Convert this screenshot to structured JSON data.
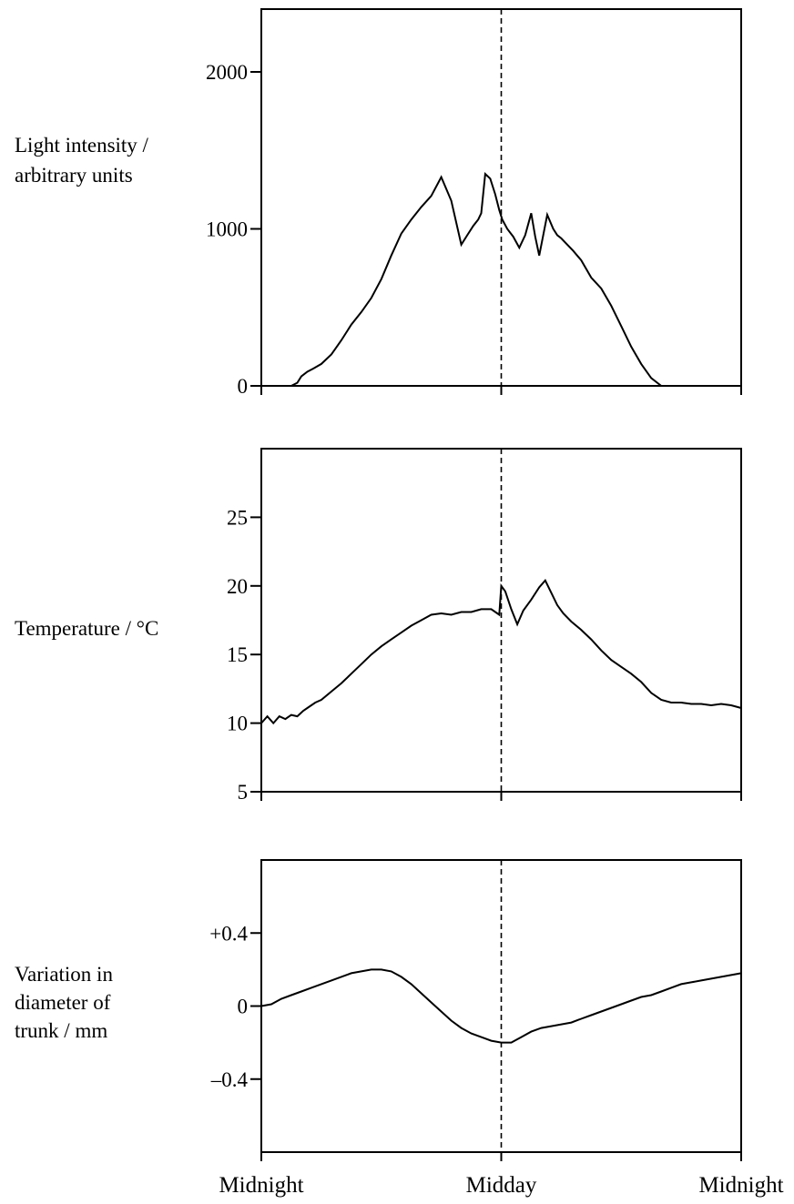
{
  "x_labels": [
    "Midnight",
    "Midday",
    "Midnight"
  ],
  "chart_data": [
    {
      "type": "line",
      "ylabel_lines": [
        "Light intensity /",
        "arbitrary units"
      ],
      "x_range_hours": [
        0,
        24
      ],
      "ylim": [
        0,
        2400
      ],
      "yticks": [
        0,
        1000,
        2000
      ],
      "ytick_labels": [
        "0",
        "1000",
        "2000"
      ],
      "midday_marker_hour": 12,
      "x": [
        1.5,
        1.8,
        2.0,
        2.3,
        2.6,
        3.0,
        3.5,
        4.0,
        4.5,
        5.0,
        5.5,
        6.0,
        6.5,
        7.0,
        7.5,
        8.0,
        8.5,
        9.0,
        9.5,
        10.0,
        10.3,
        10.6,
        10.85,
        11.0,
        11.2,
        11.45,
        11.7,
        11.9,
        12.05,
        12.3,
        12.6,
        12.9,
        13.2,
        13.5,
        13.7,
        13.9,
        14.1,
        14.3,
        14.6,
        14.8,
        15.0,
        15.3,
        15.6,
        16.0,
        16.5,
        17.0,
        17.5,
        18.0,
        18.5,
        19.0,
        19.5,
        20.0,
        20.5,
        21.0,
        21.3,
        21.5
      ],
      "values": [
        0,
        20,
        60,
        90,
        110,
        140,
        200,
        290,
        390,
        470,
        560,
        680,
        830,
        970,
        1060,
        1140,
        1210,
        1330,
        1180,
        900,
        960,
        1020,
        1060,
        1100,
        1350,
        1320,
        1220,
        1120,
        1060,
        1000,
        950,
        880,
        960,
        1100,
        950,
        830,
        960,
        1090,
        1000,
        960,
        940,
        900,
        860,
        800,
        690,
        620,
        510,
        380,
        250,
        140,
        50,
        0,
        null,
        null,
        null,
        null
      ]
    },
    {
      "type": "line",
      "ylabel": "Temperature / °C",
      "x_range_hours": [
        0,
        24
      ],
      "ylim": [
        5,
        30
      ],
      "yticks": [
        5,
        10,
        15,
        20,
        25
      ],
      "ytick_labels": [
        "5",
        "10",
        "15",
        "20",
        "25"
      ],
      "midday_marker_hour": 12,
      "x": [
        0,
        0.3,
        0.6,
        0.9,
        1.2,
        1.5,
        1.8,
        2.1,
        2.4,
        2.7,
        3.0,
        3.5,
        4.0,
        4.5,
        5.0,
        5.5,
        6.0,
        6.5,
        7.0,
        7.5,
        8.0,
        8.5,
        9.0,
        9.5,
        10.0,
        10.5,
        11.0,
        11.5,
        11.9,
        12.0,
        12.2,
        12.5,
        12.8,
        13.1,
        13.5,
        13.9,
        14.2,
        14.5,
        14.8,
        15.1,
        15.5,
        16.0,
        16.5,
        17.0,
        17.5,
        18.0,
        18.5,
        19.0,
        19.5,
        20.0,
        20.5,
        21.0,
        21.5,
        22.0,
        22.5,
        23.0,
        23.5,
        24.0
      ],
      "values": [
        10.0,
        10.5,
        10.0,
        10.5,
        10.3,
        10.6,
        10.5,
        10.9,
        11.2,
        11.5,
        11.7,
        12.3,
        12.9,
        13.6,
        14.3,
        15.0,
        15.6,
        16.1,
        16.6,
        17.1,
        17.5,
        17.9,
        18.0,
        17.9,
        18.1,
        18.1,
        18.3,
        18.3,
        17.9,
        20.0,
        19.6,
        18.3,
        17.2,
        18.2,
        19.0,
        19.9,
        20.4,
        19.5,
        18.6,
        18.0,
        17.4,
        16.8,
        16.1,
        15.3,
        14.6,
        14.1,
        13.6,
        13.0,
        12.2,
        11.7,
        11.5,
        11.5,
        11.4,
        11.4,
        11.3,
        11.4,
        11.3,
        11.1
      ]
    },
    {
      "type": "line",
      "ylabel_lines": [
        "Variation in",
        "diameter of",
        "trunk / mm"
      ],
      "x_range_hours": [
        0,
        24
      ],
      "ylim": [
        -0.8,
        0.8
      ],
      "yticks": [
        -0.4,
        0,
        0.4
      ],
      "ytick_labels": [
        "–0.4",
        "0",
        "+0.4"
      ],
      "midday_marker_hour": 12,
      "x": [
        0,
        0.5,
        1.0,
        1.5,
        2.0,
        2.5,
        3.0,
        3.5,
        4.0,
        4.5,
        5.0,
        5.5,
        6.0,
        6.5,
        7.0,
        7.5,
        8.0,
        8.5,
        9.0,
        9.5,
        10.0,
        10.5,
        11.0,
        11.5,
        12.0,
        12.5,
        13.0,
        13.5,
        14.0,
        14.5,
        15.0,
        15.5,
        16.0,
        16.5,
        17.0,
        17.5,
        18.0,
        18.5,
        19.0,
        19.5,
        20.0,
        20.5,
        21.0,
        21.5,
        22.0,
        22.5,
        23.0,
        23.5,
        24.0
      ],
      "values": [
        0,
        0.01,
        0.04,
        0.06,
        0.08,
        0.1,
        0.12,
        0.14,
        0.16,
        0.18,
        0.19,
        0.2,
        0.2,
        0.19,
        0.16,
        0.12,
        0.07,
        0.02,
        -0.03,
        -0.08,
        -0.12,
        -0.15,
        -0.17,
        -0.19,
        -0.2,
        -0.2,
        -0.17,
        -0.14,
        -0.12,
        -0.11,
        -0.1,
        -0.09,
        -0.07,
        -0.05,
        -0.03,
        -0.01,
        0.01,
        0.03,
        0.05,
        0.06,
        0.08,
        0.1,
        0.12,
        0.13,
        0.14,
        0.15,
        0.16,
        0.17,
        0.18
      ]
    }
  ]
}
